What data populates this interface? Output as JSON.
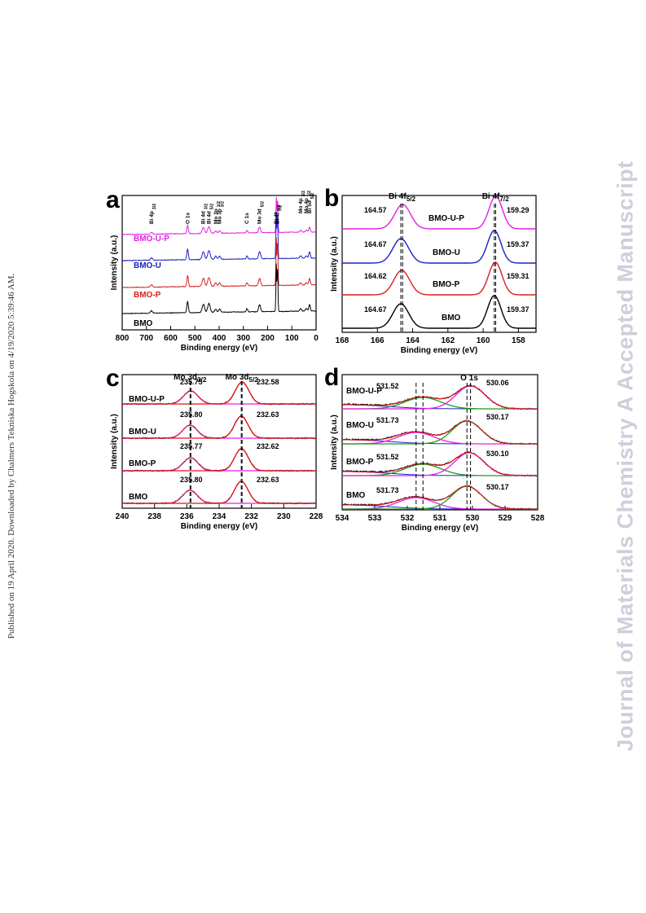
{
  "side_note": "Published on 19 April 2020. Downloaded by Chalmers Tekniska Hogskola on 4/19/2020 5:39:46 AM.",
  "watermark": "Journal of Materials Chemistry A Accepted Manuscript",
  "colors": {
    "BMO": "#000000",
    "BMO-P": "#d81e1e",
    "BMO-U": "#1a22c4",
    "BMO-U-P": "#e51ee5",
    "fit_red": "#e01515",
    "fit_magenta": "#e51ee5",
    "fit_olive": "#8a8a1a",
    "fit_green": "#1e9a1e",
    "background_blue": "#1a22c4"
  },
  "chart_data": [
    {
      "panel": "a",
      "type": "line",
      "xlabel": "Binding energy (eV)",
      "ylabel": "Intensity (a.u.)",
      "xlim": [
        800,
        0
      ],
      "xticks": [
        800,
        700,
        600,
        500,
        400,
        300,
        200,
        100,
        0
      ],
      "reversed_x": true,
      "series": [
        {
          "name": "BMO-U-P",
          "color": "#e51ee5"
        },
        {
          "name": "BMO-U",
          "color": "#1a22c4"
        },
        {
          "name": "BMO-P",
          "color": "#d81e1e"
        },
        {
          "name": "BMO",
          "color": "#000000"
        }
      ],
      "peaks": [
        {
          "label": "Bi 4p3/2",
          "sub": "3/2",
          "main": "Bi 4p",
          "x": 679
        },
        {
          "label": "O 1s",
          "main": "O 1s",
          "sub": "",
          "x": 530
        },
        {
          "label": "Bi 4d3/2",
          "main": "Bi 4d",
          "sub": "3/2",
          "x": 465
        },
        {
          "label": "Bi 4d5/2",
          "main": "Bi 4d",
          "sub": "5/2",
          "x": 442
        },
        {
          "label": "Mo 3p1/2",
          "main": "Mo 3p",
          "sub": "1/2",
          "x": 414
        },
        {
          "label": "Mo 3p3/2",
          "main": "Mo 3p",
          "sub": "3/2",
          "x": 398
        },
        {
          "label": "C 1s",
          "main": "C 1s",
          "sub": "",
          "x": 285
        },
        {
          "label": "Mo 3d5/2",
          "main": "Mo 3d",
          "sub": "5/2",
          "x": 233
        },
        {
          "label": "Bi 4f5/2",
          "main": "Bi 4f",
          "sub": "5/2",
          "x": 164
        },
        {
          "label": "Bi 4f7/2",
          "main": "Bi 4f",
          "sub": "7/2",
          "x": 159
        },
        {
          "label": "Mo 4p3/2",
          "main": "Mo 4p",
          "sub": "3/2",
          "x": 64
        },
        {
          "label": "Mo 4p1/2",
          "main": "Mo 4p",
          "sub": "1/2",
          "x": 40
        },
        {
          "label": "Bi 5d5/2",
          "main": "Bi 5d",
          "sub": "5/2",
          "x": 27
        }
      ]
    },
    {
      "panel": "b",
      "type": "line",
      "xlabel": "Binding energy (eV)",
      "ylabel": "Intensity (a.u.)",
      "xlim": [
        168,
        157
      ],
      "xticks": [
        168,
        166,
        164,
        162,
        160,
        158
      ],
      "reversed_x": true,
      "peak_labels": [
        {
          "main": "Bi 4f",
          "sub": "5/2"
        },
        {
          "main": "Bi 4f",
          "sub": "7/2"
        }
      ],
      "series": [
        {
          "name": "BMO-U-P",
          "color": "#e51ee5",
          "peak1": 164.57,
          "peak2": 159.29
        },
        {
          "name": "BMO-U",
          "color": "#1a22c4",
          "peak1": 164.67,
          "peak2": 159.37
        },
        {
          "name": "BMO-P",
          "color": "#d81e1e",
          "peak1": 164.62,
          "peak2": 159.31
        },
        {
          "name": "BMO",
          "color": "#000000",
          "peak1": 164.67,
          "peak2": 159.37
        }
      ]
    },
    {
      "panel": "c",
      "type": "line",
      "xlabel": "Binding energy (eV)",
      "ylabel": "Intensity (a.u.)",
      "xlim": [
        240,
        228
      ],
      "xticks": [
        240,
        238,
        236,
        234,
        232,
        230,
        228
      ],
      "reversed_x": true,
      "peak_labels": [
        {
          "main": "Mo 3d",
          "sub": "3/2"
        },
        {
          "main": "Mo 3d",
          "sub": "5/2"
        }
      ],
      "series": [
        {
          "name": "BMO-U-P",
          "peak1": 235.75,
          "peak2": 232.58
        },
        {
          "name": "BMO-U",
          "peak1": 235.8,
          "peak2": 232.63
        },
        {
          "name": "BMO-P",
          "peak1": 235.77,
          "peak2": 232.62
        },
        {
          "name": "BMO",
          "peak1": 235.8,
          "peak2": 232.63
        }
      ]
    },
    {
      "panel": "d",
      "type": "line",
      "xlabel": "Binding energy (eV)",
      "ylabel": "Intensity (a.u.)",
      "xlim": [
        534,
        528
      ],
      "xticks": [
        534,
        533,
        532,
        531,
        530,
        529,
        528
      ],
      "reversed_x": true,
      "peak_labels": [
        {
          "main": "O 1s",
          "sub": ""
        }
      ],
      "series": [
        {
          "name": "BMO-U-P",
          "peak1": 531.52,
          "peak2": 530.06
        },
        {
          "name": "BMO-U",
          "peak1": 531.73,
          "peak2": 530.17
        },
        {
          "name": "BMO-P",
          "peak1": 531.52,
          "peak2": 530.1
        },
        {
          "name": "BMO",
          "peak1": 531.73,
          "peak2": 530.17
        }
      ]
    }
  ]
}
